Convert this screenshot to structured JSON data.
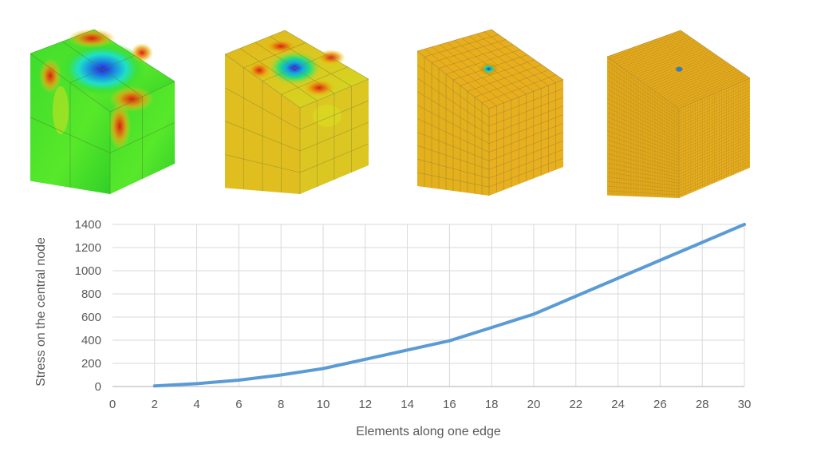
{
  "colors": {
    "series_line": "#5b9bd5",
    "gridline": "#d9d9d9",
    "axis_line": "#bfbfbf",
    "text": "#595959",
    "mesh_orange": "#e8ad1c",
    "mesh_yellow_green": "#c9d622",
    "mesh_green": "#47e02a",
    "hotspot_red": "#e01a10",
    "hotspot_blue": "#2020e0"
  },
  "mesh_images": [
    {
      "elements_per_edge": 2,
      "mesh_icon": "cube-mesh-icon"
    },
    {
      "elements_per_edge": 4,
      "mesh_icon": "cube-mesh-icon"
    },
    {
      "elements_per_edge": 10,
      "mesh_icon": "cube-mesh-icon"
    },
    {
      "elements_per_edge": 30,
      "mesh_icon": "cube-mesh-icon"
    }
  ],
  "chart_data": {
    "type": "line",
    "title": "",
    "xlabel": "Elements along one edge",
    "ylabel": "Stress on the central node",
    "xlim": [
      0,
      30
    ],
    "ylim": [
      0,
      1400
    ],
    "x_ticks": [
      0,
      2,
      4,
      6,
      8,
      10,
      12,
      14,
      16,
      18,
      20,
      22,
      24,
      26,
      28,
      30
    ],
    "y_ticks": [
      0,
      200,
      400,
      600,
      800,
      1000,
      1200,
      1400
    ],
    "grid": true,
    "legend": "none",
    "series": [
      {
        "x": [
          2,
          4,
          6,
          8,
          10,
          12,
          14,
          16,
          18,
          20,
          22,
          24,
          26,
          28,
          30
        ],
        "values": [
          5,
          25,
          55,
          100,
          155,
          235,
          315,
          395,
          510,
          625,
          780,
          935,
          1090,
          1245,
          1400
        ]
      }
    ]
  }
}
